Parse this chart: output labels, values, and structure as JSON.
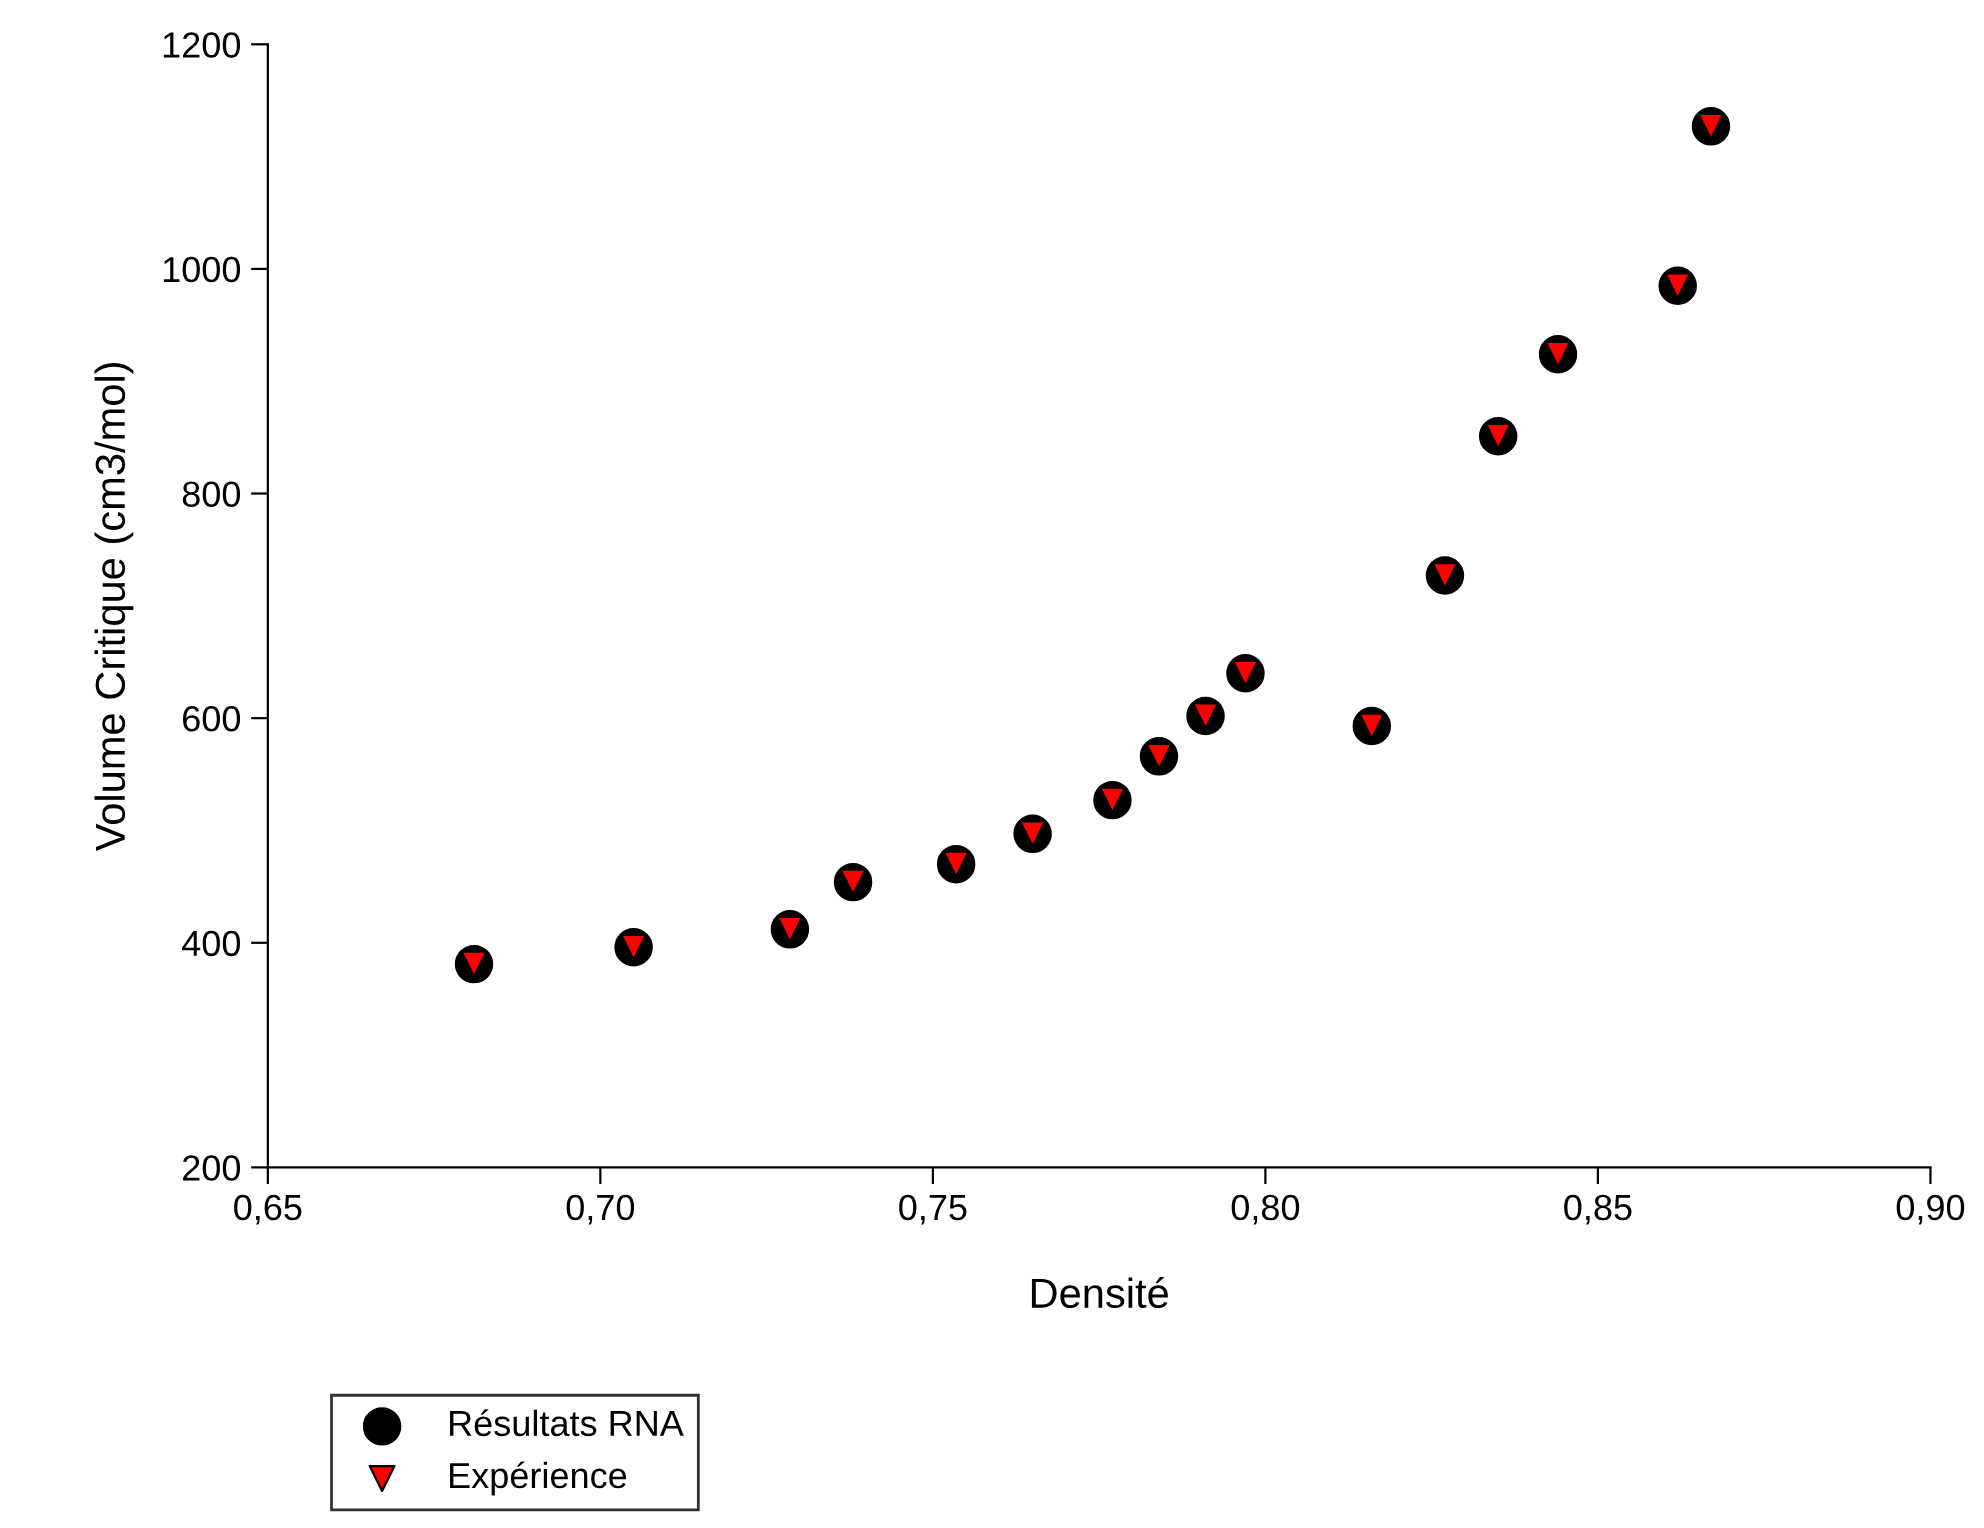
{
  "chart_data": {
    "type": "scatter",
    "xlabel": "Densité",
    "ylabel": "Volume Critique (cm3/mol)",
    "x": [
      0.681,
      0.705,
      0.7285,
      0.738,
      0.7535,
      0.765,
      0.777,
      0.784,
      0.791,
      0.797,
      0.816,
      0.827,
      0.835,
      0.844,
      0.862,
      0.867
    ],
    "series": [
      {
        "name": "Résultats RNA",
        "color": "#000000",
        "marker": "circle",
        "values": [
          381,
          396,
          412,
          454,
          470,
          497,
          527,
          566,
          602,
          640,
          593,
          727,
          851,
          924,
          985,
          1127
        ]
      },
      {
        "name": "Expérience",
        "color": "#ff0000",
        "marker": "triangle",
        "values": [
          381,
          396,
          412,
          454,
          470,
          497,
          527,
          566,
          602,
          640,
          593,
          727,
          851,
          924,
          985,
          1127
        ]
      }
    ],
    "xlim": [
      0.65,
      0.9
    ],
    "ylim": [
      200,
      1200
    ],
    "xticks": [
      {
        "value": 0.65,
        "label": "0,65"
      },
      {
        "value": 0.7,
        "label": "0,70"
      },
      {
        "value": 0.75,
        "label": "0,75"
      },
      {
        "value": 0.8,
        "label": "0,80"
      },
      {
        "value": 0.85,
        "label": "0,85"
      },
      {
        "value": 0.9,
        "label": "0,90"
      }
    ],
    "yticks": [
      200,
      400,
      600,
      800,
      1000,
      1200
    ],
    "grid": false,
    "legend": "bottom left"
  }
}
